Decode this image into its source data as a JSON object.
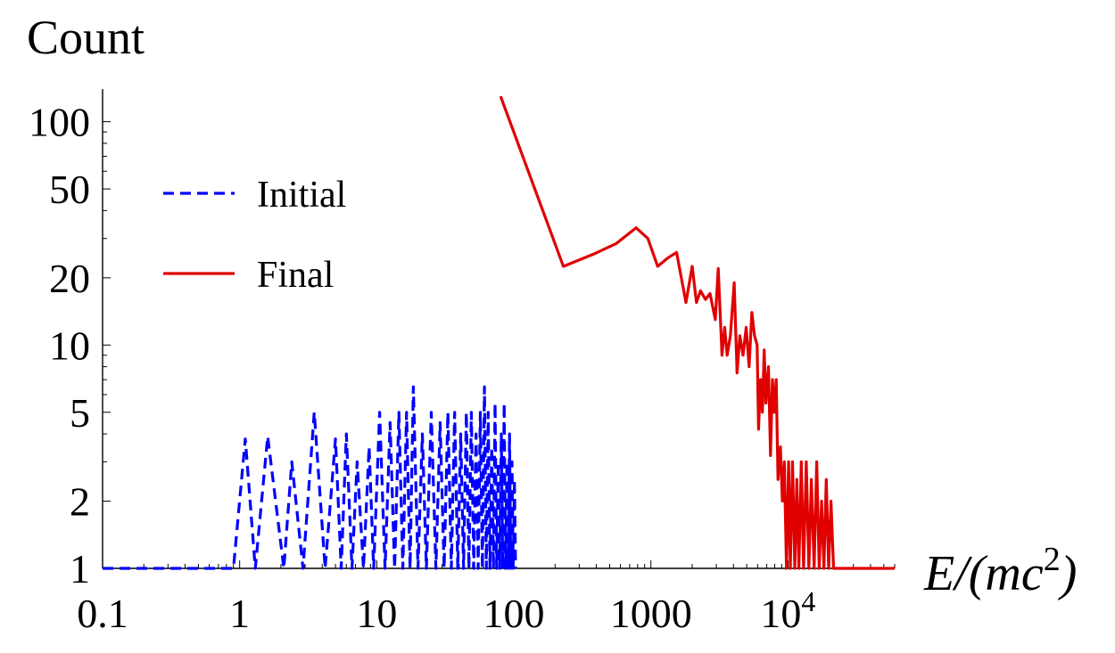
{
  "chart_data": {
    "type": "line",
    "title": "",
    "ylabel": "Count",
    "xlabel": "E/(mc²)",
    "xscale": "log",
    "yscale": "log",
    "xlim": [
      0.1,
      60000
    ],
    "ylim": [
      1,
      140
    ],
    "x_ticks": [
      {
        "value": 0.1,
        "label": "0.1"
      },
      {
        "value": 1,
        "label": "1"
      },
      {
        "value": 10,
        "label": "10"
      },
      {
        "value": 100,
        "label": "100"
      },
      {
        "value": 1000,
        "label": "1000"
      },
      {
        "value": 10000,
        "label": "10⁴"
      }
    ],
    "y_ticks": [
      {
        "value": 1,
        "label": "1"
      },
      {
        "value": 2,
        "label": "2"
      },
      {
        "value": 5,
        "label": "5"
      },
      {
        "value": 10,
        "label": "10"
      },
      {
        "value": 20,
        "label": "20"
      },
      {
        "value": 50,
        "label": "50"
      },
      {
        "value": 100,
        "label": "100"
      }
    ],
    "grid": false,
    "legend": "left",
    "series": [
      {
        "name": "Initial",
        "color": "#0000ff",
        "dash": "dashed",
        "points": [
          [
            0.1,
            1
          ],
          [
            0.5,
            1
          ],
          [
            0.9,
            1
          ],
          [
            1.1,
            3.8
          ],
          [
            1.3,
            1
          ],
          [
            1.6,
            3.9
          ],
          [
            2.1,
            1
          ],
          [
            2.4,
            3
          ],
          [
            2.9,
            1
          ],
          [
            3.5,
            5
          ],
          [
            4.2,
            1
          ],
          [
            5,
            3.8
          ],
          [
            5.5,
            1
          ],
          [
            6,
            4
          ],
          [
            6.6,
            1
          ],
          [
            7.2,
            3
          ],
          [
            8,
            1
          ],
          [
            8.8,
            3.5
          ],
          [
            9.5,
            1
          ],
          [
            10.5,
            5
          ],
          [
            11.5,
            1
          ],
          [
            12.5,
            4.5
          ],
          [
            13.5,
            1
          ],
          [
            14.5,
            5
          ],
          [
            15.5,
            1
          ],
          [
            16.5,
            5
          ],
          [
            17.5,
            1
          ],
          [
            18.5,
            6.5
          ],
          [
            20,
            1
          ],
          [
            21.5,
            4
          ],
          [
            23,
            1
          ],
          [
            25,
            5
          ],
          [
            27,
            1
          ],
          [
            29,
            4.5
          ],
          [
            31,
            1
          ],
          [
            33,
            5
          ],
          [
            35,
            1
          ],
          [
            37,
            5
          ],
          [
            39,
            1
          ],
          [
            41,
            4
          ],
          [
            43,
            1
          ],
          [
            45,
            5
          ],
          [
            47,
            1
          ],
          [
            49,
            5
          ],
          [
            51,
            1
          ],
          [
            53,
            4
          ],
          [
            55,
            1
          ],
          [
            57,
            5
          ],
          [
            59,
            1
          ],
          [
            61,
            6.5
          ],
          [
            63,
            1
          ],
          [
            65,
            5
          ],
          [
            67,
            1
          ],
          [
            69,
            3.5
          ],
          [
            71,
            1
          ],
          [
            73,
            5.5
          ],
          [
            75,
            1
          ],
          [
            77,
            3
          ],
          [
            79,
            1
          ],
          [
            81,
            4
          ],
          [
            83,
            1
          ],
          [
            85,
            5.5
          ],
          [
            87,
            1
          ],
          [
            89,
            3
          ],
          [
            91,
            1
          ],
          [
            93,
            4
          ],
          [
            95,
            1
          ],
          [
            97,
            3
          ],
          [
            99,
            1
          ],
          [
            101,
            2.5
          ],
          [
            103,
            1
          ]
        ]
      },
      {
        "name": "Final",
        "color": "#e00000",
        "dash": "solid",
        "points": [
          [
            80,
            130
          ],
          [
            230,
            22.5
          ],
          [
            380,
            25.5
          ],
          [
            560,
            28.5
          ],
          [
            780,
            33.5
          ],
          [
            950,
            30
          ],
          [
            1120,
            22.5
          ],
          [
            1320,
            24.5
          ],
          [
            1540,
            26
          ],
          [
            1800,
            15.5
          ],
          [
            2000,
            22.5
          ],
          [
            2150,
            15.5
          ],
          [
            2300,
            17.5
          ],
          [
            2500,
            16
          ],
          [
            2700,
            17
          ],
          [
            2950,
            13
          ],
          [
            3100,
            22
          ],
          [
            3300,
            9
          ],
          [
            3450,
            12
          ],
          [
            3600,
            9
          ],
          [
            3800,
            11
          ],
          [
            4050,
            19
          ],
          [
            4250,
            7.5
          ],
          [
            4450,
            11
          ],
          [
            4700,
            9
          ],
          [
            4950,
            12
          ],
          [
            5200,
            8
          ],
          [
            5450,
            14
          ],
          [
            5700,
            11
          ],
          [
            5950,
            10
          ],
          [
            6100,
            4.2
          ],
          [
            6300,
            7
          ],
          [
            6500,
            5
          ],
          [
            6700,
            9.5
          ],
          [
            6900,
            5.5
          ],
          [
            7200,
            8
          ],
          [
            7450,
            3.2
          ],
          [
            7700,
            7
          ],
          [
            7950,
            5
          ],
          [
            8200,
            7
          ],
          [
            8450,
            2.5
          ],
          [
            8800,
            3.5
          ],
          [
            9100,
            2
          ],
          [
            9400,
            3
          ],
          [
            9750,
            1
          ],
          [
            10100,
            3
          ],
          [
            10400,
            1
          ],
          [
            10800,
            3
          ],
          [
            11200,
            1
          ],
          [
            11600,
            2.5
          ],
          [
            12000,
            1
          ],
          [
            12500,
            3
          ],
          [
            13000,
            1
          ],
          [
            13600,
            3
          ],
          [
            14200,
            1
          ],
          [
            14800,
            2.5
          ],
          [
            15500,
            1
          ],
          [
            16200,
            3
          ],
          [
            16900,
            1
          ],
          [
            17600,
            2
          ],
          [
            18300,
            1
          ],
          [
            19000,
            2.5
          ],
          [
            19800,
            1
          ],
          [
            20600,
            2
          ],
          [
            21500,
            1
          ],
          [
            60000,
            1
          ]
        ]
      }
    ]
  }
}
